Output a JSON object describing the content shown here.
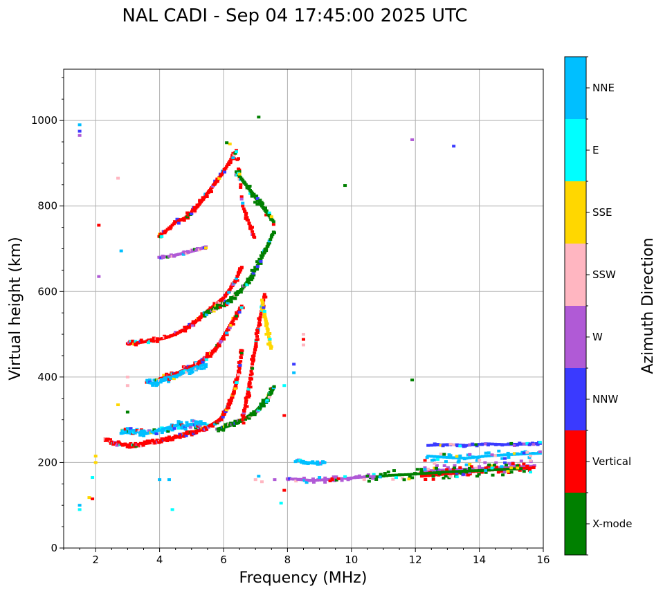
{
  "chart_data": {
    "type": "scatter",
    "title": "NAL CADI - Sep 04 17:45:00 2025 UTC",
    "xlabel": "Frequency (MHz)",
    "ylabel": "Virtual height (km)",
    "xlim": [
      1,
      16
    ],
    "ylim": [
      0,
      1120
    ],
    "xticks": [
      2,
      4,
      6,
      8,
      10,
      12,
      14,
      16
    ],
    "yticks": [
      0,
      200,
      400,
      600,
      800,
      1000
    ],
    "grid": true,
    "colorbar": {
      "label": "Azimuth Direction",
      "categories": [
        "X-mode",
        "Vertical",
        "NNW",
        "W",
        "SSW",
        "SSE",
        "E",
        "NNE"
      ],
      "colors": [
        "#008000",
        "#ff0000",
        "#3a3aff",
        "#b05ad6",
        "#ffb6c1",
        "#ffd700",
        "#00ffff",
        "#00bfff"
      ]
    },
    "traces": [
      {
        "category": "Vertical",
        "f": [
          2.3,
          2.5,
          2.7,
          2.9,
          3.1,
          3.3,
          3.5,
          3.7,
          3.9,
          4.1,
          4.3,
          4.5,
          4.7,
          4.9,
          5.1,
          5.3,
          5.5,
          5.7,
          5.9,
          6.0,
          6.1,
          6.2,
          6.3,
          6.4,
          6.5,
          6.6
        ],
        "h": [
          255,
          248,
          244,
          242,
          240,
          242,
          244,
          246,
          249,
          252,
          255,
          259,
          264,
          268,
          272,
          277,
          283,
          291,
          301,
          312,
          325,
          340,
          360,
          385,
          420,
          470
        ],
        "jitter": 5
      },
      {
        "category": "X-mode",
        "f": [
          5.8,
          6.0,
          6.2,
          6.4,
          6.6,
          6.8,
          7.0,
          7.1,
          7.2,
          7.3,
          7.4,
          7.5,
          7.6
        ],
        "h": [
          278,
          282,
          287,
          293,
          300,
          308,
          318,
          326,
          334,
          343,
          353,
          366,
          380
        ],
        "jitter": 6
      },
      {
        "category": "NNE",
        "f": [
          2.8,
          3.0,
          3.2,
          3.4,
          3.6,
          3.8,
          4.0,
          4.2,
          4.4,
          4.6,
          4.8,
          5.0,
          5.2,
          5.4
        ],
        "h": [
          268,
          272,
          275,
          270,
          268,
          272,
          276,
          280,
          284,
          288,
          285,
          290,
          288,
          292
        ],
        "jitter": 9
      },
      {
        "category": "Vertical",
        "f": [
          4.0,
          4.2,
          4.4,
          4.6,
          4.8,
          5.0,
          5.2,
          5.4,
          5.6,
          5.8,
          6.0,
          6.2,
          6.4,
          6.6
        ],
        "h": [
          395,
          400,
          405,
          410,
          418,
          425,
          430,
          440,
          455,
          470,
          495,
          520,
          545,
          570
        ],
        "jitter": 6
      },
      {
        "category": "NNE",
        "f": [
          3.6,
          3.8,
          4.0,
          4.3,
          4.6,
          4.9,
          5.2,
          5.5
        ],
        "h": [
          388,
          385,
          390,
          395,
          405,
          415,
          425,
          430
        ],
        "jitter": 8
      },
      {
        "category": "Vertical",
        "f": [
          3.0,
          3.3,
          3.6,
          3.9,
          4.2,
          4.5,
          4.8,
          5.0,
          5.2,
          5.4,
          5.6,
          5.8,
          6.0,
          6.2,
          6.4,
          6.6
        ],
        "h": [
          478,
          480,
          483,
          487,
          492,
          500,
          512,
          522,
          535,
          548,
          560,
          572,
          585,
          605,
          630,
          660
        ],
        "jitter": 5
      },
      {
        "category": "X-mode",
        "f": [
          5.4,
          5.6,
          5.8,
          6.0,
          6.2,
          6.4,
          6.6,
          6.8,
          7.0,
          7.2,
          7.4,
          7.6
        ],
        "h": [
          548,
          555,
          562,
          570,
          580,
          592,
          608,
          628,
          652,
          680,
          710,
          745
        ],
        "jitter": 6
      },
      {
        "category": "Vertical",
        "f": [
          4.0,
          4.2,
          4.5,
          4.8,
          5.0,
          5.2,
          5.4,
          5.6,
          5.8,
          6.0,
          6.2,
          6.4,
          6.6,
          6.8,
          7.0
        ],
        "h": [
          732,
          742,
          762,
          772,
          785,
          800,
          820,
          840,
          860,
          880,
          905,
          930,
          800,
          760,
          720
        ],
        "jitter": 7
      },
      {
        "category": "W",
        "f": [
          4.0,
          4.3,
          4.6,
          4.9,
          5.2,
          5.5
        ],
        "h": [
          680,
          682,
          687,
          692,
          698,
          706
        ],
        "jitter": 3
      },
      {
        "category": "X-mode",
        "f": [
          6.4,
          6.6,
          6.8,
          7.0,
          7.2,
          7.4,
          7.6
        ],
        "h": [
          880,
          860,
          840,
          820,
          800,
          780,
          760
        ],
        "jitter": 8
      },
      {
        "category": "Vertical",
        "f": [
          6.6,
          6.7,
          6.8,
          6.9,
          7.0,
          7.1,
          7.2,
          7.3
        ],
        "h": [
          300,
          340,
          380,
          430,
          470,
          520,
          560,
          600
        ],
        "jitter": 12
      },
      {
        "category": "SSE",
        "f": [
          7.2,
          7.3,
          7.4,
          7.5
        ],
        "h": [
          580,
          540,
          500,
          460
        ],
        "jitter": 10
      },
      {
        "category": "W",
        "f": [
          12.2,
          12.8,
          13.4,
          14.0,
          14.6,
          15.2,
          15.8
        ],
        "h": [
          180,
          182,
          184,
          186,
          188,
          190,
          192
        ],
        "jitter": 14
      },
      {
        "category": "Vertical",
        "f": [
          12.2,
          12.8,
          13.4,
          14.0,
          14.6,
          15.2,
          15.8
        ],
        "h": [
          168,
          172,
          176,
          180,
          184,
          186,
          188
        ],
        "jitter": 12
      },
      {
        "category": "X-mode",
        "f": [
          10.6,
          11.2,
          11.8,
          12.4,
          13.0,
          13.6,
          14.2,
          14.8,
          15.4
        ],
        "h": [
          165,
          170,
          172,
          175,
          178,
          180,
          182,
          184,
          186
        ],
        "jitter": 14
      },
      {
        "category": "NNE",
        "f": [
          12.4,
          13.0,
          13.6,
          14.2,
          14.8,
          15.4,
          16.0
        ],
        "h": [
          215,
          212,
          210,
          215,
          218,
          220,
          222
        ],
        "jitter": 10
      },
      {
        "category": "W",
        "f": [
          8.0,
          8.4,
          8.8,
          9.2,
          9.6,
          10.2,
          10.8
        ],
        "h": [
          162,
          160,
          158,
          160,
          162,
          165,
          168
        ],
        "jitter": 6
      },
      {
        "category": "NNW",
        "f": [
          12.4,
          13.0,
          13.6,
          14.2,
          14.8,
          15.4,
          16.0
        ],
        "h": [
          240,
          242,
          240,
          244,
          242,
          243,
          245
        ],
        "jitter": 3
      },
      {
        "category": "NNE",
        "f": [
          8.3,
          8.6,
          8.9,
          9.2
        ],
        "h": [
          205,
          200,
          198,
          200
        ],
        "jitter": 4
      }
    ],
    "isolated_points": [
      {
        "f": 1.5,
        "h": 990,
        "category": "NNE"
      },
      {
        "f": 1.5,
        "h": 975,
        "category": "NNW"
      },
      {
        "f": 1.5,
        "h": 965,
        "category": "W"
      },
      {
        "f": 7.1,
        "h": 1008,
        "category": "X-mode"
      },
      {
        "f": 6.2,
        "h": 945,
        "category": "SSE"
      },
      {
        "f": 6.1,
        "h": 948,
        "category": "X-mode"
      },
      {
        "f": 11.9,
        "h": 955,
        "category": "W"
      },
      {
        "f": 13.2,
        "h": 940,
        "category": "NNW"
      },
      {
        "f": 9.8,
        "h": 848,
        "category": "X-mode"
      },
      {
        "f": 2.1,
        "h": 755,
        "category": "Vertical"
      },
      {
        "f": 2.1,
        "h": 635,
        "category": "W"
      },
      {
        "f": 2.8,
        "h": 695,
        "category": "NNE"
      },
      {
        "f": 2.7,
        "h": 865,
        "category": "SSW"
      },
      {
        "f": 3.0,
        "h": 400,
        "category": "SSW"
      },
      {
        "f": 3.0,
        "h": 380,
        "category": "SSW"
      },
      {
        "f": 2.7,
        "h": 335,
        "category": "SSE"
      },
      {
        "f": 3.0,
        "h": 318,
        "category": "X-mode"
      },
      {
        "f": 8.5,
        "h": 500,
        "category": "SSW"
      },
      {
        "f": 8.5,
        "h": 488,
        "category": "Vertical"
      },
      {
        "f": 8.5,
        "h": 475,
        "category": "SSW"
      },
      {
        "f": 8.2,
        "h": 430,
        "category": "NNW"
      },
      {
        "f": 8.2,
        "h": 410,
        "category": "NNE"
      },
      {
        "f": 7.9,
        "h": 380,
        "category": "E"
      },
      {
        "f": 7.9,
        "h": 310,
        "category": "Vertical"
      },
      {
        "f": 11.9,
        "h": 393,
        "category": "X-mode"
      },
      {
        "f": 1.5,
        "h": 100,
        "category": "NNE"
      },
      {
        "f": 1.5,
        "h": 90,
        "category": "E"
      },
      {
        "f": 1.8,
        "h": 118,
        "category": "SSE"
      },
      {
        "f": 1.9,
        "h": 115,
        "category": "Vertical"
      },
      {
        "f": 2.0,
        "h": 200,
        "category": "SSE"
      },
      {
        "f": 2.0,
        "h": 215,
        "category": "SSE"
      },
      {
        "f": 1.9,
        "h": 165,
        "category": "E"
      },
      {
        "f": 4.0,
        "h": 160,
        "category": "NNE"
      },
      {
        "f": 4.3,
        "h": 160,
        "category": "NNE"
      },
      {
        "f": 4.4,
        "h": 90,
        "category": "E"
      },
      {
        "f": 7.9,
        "h": 135,
        "category": "Vertical"
      },
      {
        "f": 7.8,
        "h": 105,
        "category": "E"
      },
      {
        "f": 7.0,
        "h": 160,
        "category": "SSW"
      },
      {
        "f": 7.2,
        "h": 155,
        "category": "SSW"
      },
      {
        "f": 7.6,
        "h": 160,
        "category": "W"
      },
      {
        "f": 7.1,
        "h": 168,
        "category": "NNE"
      },
      {
        "f": 9.0,
        "h": 165,
        "category": "NNE"
      },
      {
        "f": 9.4,
        "h": 160,
        "category": "Vertical"
      },
      {
        "f": 12.6,
        "h": 198,
        "category": "SSW"
      },
      {
        "f": 14.4,
        "h": 218,
        "category": "W"
      },
      {
        "f": 12.3,
        "h": 205,
        "category": "Vertical"
      }
    ]
  }
}
